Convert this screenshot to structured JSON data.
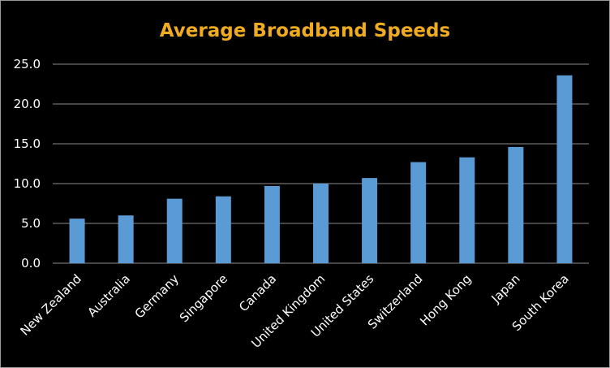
{
  "chart_data": {
    "type": "bar",
    "title": "Average Broadband Speeds",
    "xlabel": "",
    "ylabel": "",
    "categories": [
      "New Zealand",
      "Australia",
      "Germany",
      "Singapore",
      "Canada",
      "United Kingdom",
      "United States",
      "Switzerland",
      "Hong Kong",
      "Japan",
      "South Korea"
    ],
    "values": [
      5.6,
      6.0,
      8.1,
      8.4,
      9.7,
      10.0,
      10.7,
      12.7,
      13.3,
      14.6,
      23.6
    ],
    "ylim": [
      0,
      25
    ],
    "yticks": [
      "0.0",
      "5.0",
      "10.0",
      "15.0",
      "20.0",
      "25.0"
    ],
    "grid": true,
    "legend": "none"
  },
  "colors": {
    "background": "#000000",
    "bar": "#5b9bd5",
    "title": "#f0ac21",
    "text": "#ffffff",
    "grid": "#8c8c8c"
  }
}
